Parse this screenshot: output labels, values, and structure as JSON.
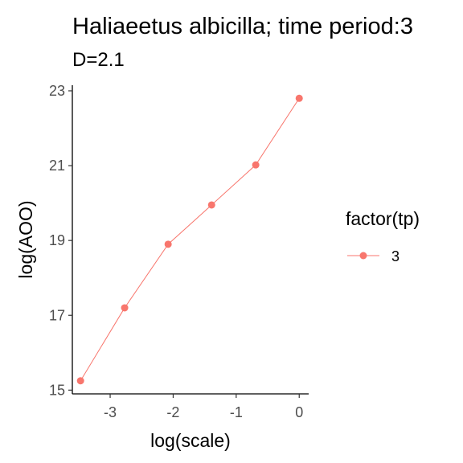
{
  "chart_data": {
    "type": "line",
    "title": "Haliaeetus albicilla; time period:3",
    "subtitle": "D=2.1",
    "xlabel": "log(scale)",
    "ylabel": "log(AOO)",
    "xlim": [
      -3.6,
      0.15
    ],
    "ylim": [
      14.9,
      23.15
    ],
    "x_ticks": [
      -3,
      -2,
      -1,
      0
    ],
    "y_ticks": [
      15,
      17,
      19,
      21,
      23
    ],
    "grid": false,
    "legend": {
      "title": "factor(tp)",
      "position": "right"
    },
    "series": [
      {
        "name": "3",
        "color": "#F8766D",
        "x": [
          -3.47,
          -2.77,
          -2.08,
          -1.39,
          -0.69,
          0.0
        ],
        "y": [
          15.25,
          17.2,
          18.9,
          19.95,
          21.02,
          22.8
        ]
      }
    ]
  }
}
